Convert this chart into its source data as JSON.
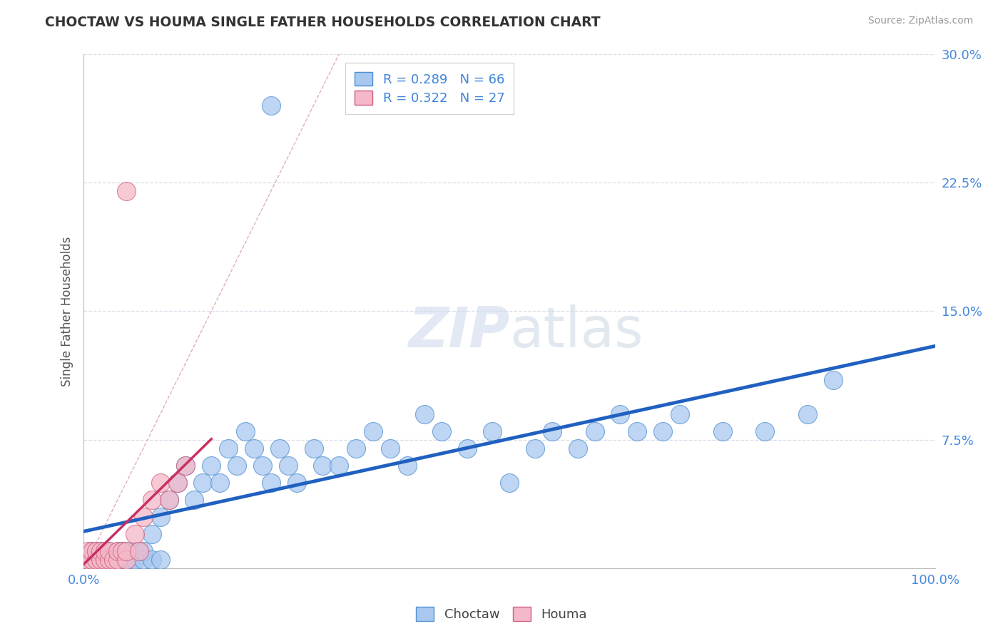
{
  "title": "CHOCTAW VS HOUMA SINGLE FATHER HOUSEHOLDS CORRELATION CHART",
  "source": "Source: ZipAtlas.com",
  "ylabel": "Single Father Households",
  "xlim": [
    0,
    1.0
  ],
  "ylim": [
    0,
    0.3
  ],
  "choctaw_color": "#a8c8f0",
  "choctaw_edge_color": "#5090d0",
  "choctaw_line_color": "#2060c0",
  "houma_color": "#f5b8c8",
  "houma_edge_color": "#d06080",
  "houma_line_color": "#c83060",
  "diagonal_color": "#e0b0b8",
  "grid_color": "#d8dde8",
  "R_choctaw": 0.289,
  "N_choctaw": 66,
  "R_houma": 0.322,
  "N_houma": 27,
  "tick_color": "#4488dd",
  "background_color": "#ffffff",
  "choctaw_x": [
    0.005,
    0.01,
    0.01,
    0.015,
    0.02,
    0.02,
    0.025,
    0.03,
    0.03,
    0.035,
    0.04,
    0.04,
    0.045,
    0.05,
    0.05,
    0.055,
    0.06,
    0.06,
    0.065,
    0.07,
    0.07,
    0.08,
    0.08,
    0.09,
    0.09,
    0.1,
    0.11,
    0.12,
    0.13,
    0.14,
    0.15,
    0.16,
    0.17,
    0.18,
    0.19,
    0.2,
    0.21,
    0.22,
    0.23,
    0.24,
    0.25,
    0.27,
    0.28,
    0.3,
    0.32,
    0.34,
    0.36,
    0.38,
    0.4,
    0.42,
    0.45,
    0.48,
    0.5,
    0.53,
    0.55,
    0.58,
    0.6,
    0.63,
    0.65,
    0.68,
    0.7,
    0.75,
    0.8,
    0.85,
    0.88,
    0.22
  ],
  "choctaw_y": [
    0.005,
    0.01,
    0.005,
    0.01,
    0.005,
    0.01,
    0.005,
    0.01,
    0.005,
    0.005,
    0.01,
    0.005,
    0.01,
    0.005,
    0.01,
    0.005,
    0.01,
    0.005,
    0.01,
    0.005,
    0.01,
    0.02,
    0.005,
    0.03,
    0.005,
    0.04,
    0.05,
    0.06,
    0.04,
    0.05,
    0.06,
    0.05,
    0.07,
    0.06,
    0.08,
    0.07,
    0.06,
    0.05,
    0.07,
    0.06,
    0.05,
    0.07,
    0.06,
    0.06,
    0.07,
    0.08,
    0.07,
    0.06,
    0.09,
    0.08,
    0.07,
    0.08,
    0.05,
    0.07,
    0.08,
    0.07,
    0.08,
    0.09,
    0.08,
    0.08,
    0.09,
    0.08,
    0.08,
    0.09,
    0.11,
    0.27
  ],
  "houma_x": [
    0.005,
    0.005,
    0.01,
    0.01,
    0.015,
    0.015,
    0.02,
    0.02,
    0.025,
    0.025,
    0.03,
    0.03,
    0.035,
    0.04,
    0.04,
    0.045,
    0.05,
    0.05,
    0.06,
    0.065,
    0.07,
    0.08,
    0.09,
    0.1,
    0.11,
    0.12,
    0.05
  ],
  "houma_y": [
    0.005,
    0.01,
    0.005,
    0.01,
    0.005,
    0.01,
    0.005,
    0.01,
    0.005,
    0.01,
    0.005,
    0.01,
    0.005,
    0.005,
    0.01,
    0.01,
    0.005,
    0.01,
    0.02,
    0.01,
    0.03,
    0.04,
    0.05,
    0.04,
    0.05,
    0.06,
    0.22
  ]
}
